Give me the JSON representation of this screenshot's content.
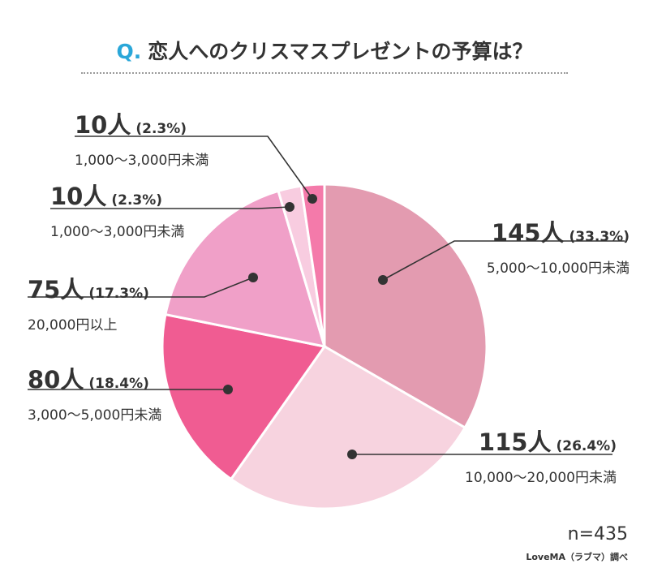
{
  "header": {
    "q_mark": "Q.",
    "question": "恋人へのクリスマスプレゼントの予算は？"
  },
  "chart_data": {
    "type": "pie",
    "title": "恋人へのクリスマスプレゼントの予算は？",
    "total": 435,
    "slices": [
      {
        "label": "5,000〜10,000円未満",
        "count_text": "145人",
        "pct_text": "(33.3%)",
        "value": 145,
        "percent": 33.3,
        "color": "#e39bb0"
      },
      {
        "label": "10,000〜20,000円未満",
        "count_text": "115人",
        "pct_text": "(26.4%)",
        "value": 115,
        "percent": 26.4,
        "color": "#f7d3df"
      },
      {
        "label": "3,000〜5,000円未満",
        "count_text": "80人",
        "pct_text": "(18.4%)",
        "value": 80,
        "percent": 18.4,
        "color": "#f05c92"
      },
      {
        "label": "20,000円以上",
        "count_text": "75人",
        "pct_text": "(17.3%)",
        "value": 75,
        "percent": 17.3,
        "color": "#f0a0c8"
      },
      {
        "label": "1,000〜3,000円未満",
        "count_text": "10人",
        "pct_text": "(2.3%)",
        "value": 10,
        "percent": 2.3,
        "color": "#f8cce0"
      },
      {
        "label": "1,000〜3,000円未満",
        "count_text": "10人",
        "pct_text": "(2.3%)",
        "value": 10,
        "percent": 2.3,
        "color": "#f47aaa"
      }
    ]
  },
  "footer": {
    "n": "n=435",
    "source": "LoveMA（ラブマ）調べ"
  }
}
